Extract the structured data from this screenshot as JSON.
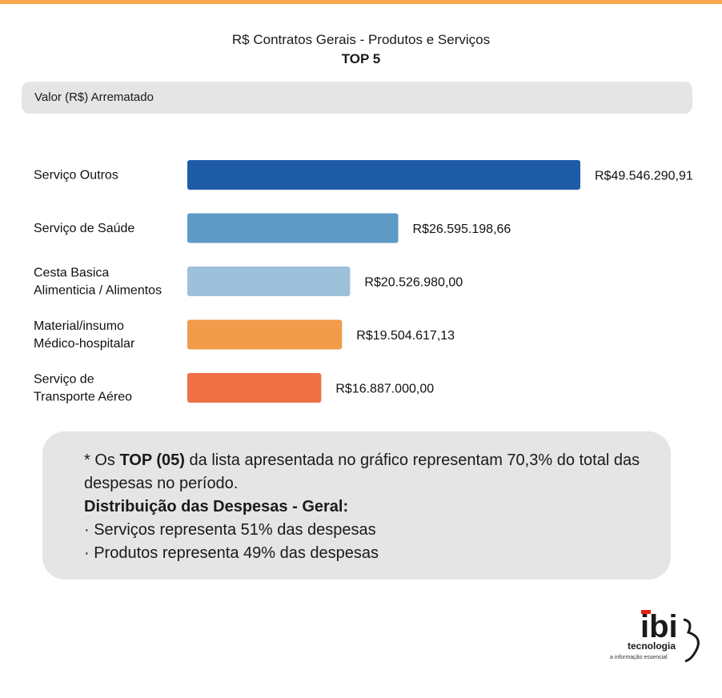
{
  "header": {
    "title": "R$ Contratos Gerais - Produtos e Serviços",
    "subtitle": "TOP 5"
  },
  "metric_label": "Valor (R$) Arrematado",
  "chart_data": {
    "type": "bar",
    "orientation": "horizontal",
    "title": "R$ Contratos Gerais - Produtos e Serviços",
    "subtitle": "TOP 5",
    "xlabel": "Valor (R$) Arrematado",
    "ylabel": "",
    "grid": false,
    "categories": [
      [
        "Serviço Outros"
      ],
      [
        "Serviço de Saúde"
      ],
      [
        "Cesta Basica",
        "Alimenticia / Alimentos"
      ],
      [
        "Material/insumo",
        "Médico-hospitalar"
      ],
      [
        "Serviço de",
        "Transporte Aéreo"
      ]
    ],
    "values": [
      49546290.91,
      26595198.66,
      20526980.0,
      19504617.13,
      16887000.0
    ],
    "value_labels": [
      "R$49.546.290,91",
      "R$26.595.198,66",
      "R$20.526.980,00",
      "R$19.504.617,13",
      "R$16.887.000,00"
    ],
    "colors": [
      "#1f5ca8",
      "#5e9ac4",
      "#9dc0db",
      "#f29b4b",
      "#ee7044"
    ]
  },
  "note": {
    "line1_prefix": "* Os ",
    "line1_bold": "TOP (05)",
    "line1_suffix": " da lista apresentada no gráfico representam 70,3% do total das",
    "line2": "despesas no período.",
    "heading": "Distribuição das Despesas - Geral:",
    "item1": "· Serviços representa 51% das despesas",
    "item2": "· Produtos representa 49% das despesas"
  },
  "logo": {
    "brand": "ibi",
    "tagline": "tecnologia",
    "slogan": "a informação essencial",
    "accent_color": "#e2231a"
  }
}
